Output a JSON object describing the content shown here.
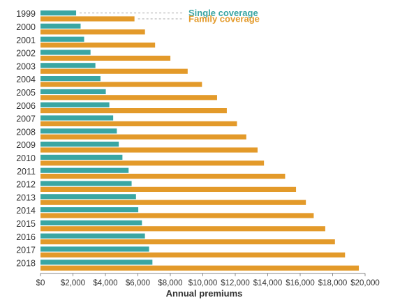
{
  "chart_data": {
    "type": "bar",
    "orientation": "horizontal",
    "categories": [
      "1999",
      "2000",
      "2001",
      "2002",
      "2003",
      "2004",
      "2005",
      "2006",
      "2007",
      "2008",
      "2009",
      "2010",
      "2011",
      "2012",
      "2013",
      "2014",
      "2015",
      "2016",
      "2017",
      "2018"
    ],
    "series": [
      {
        "name": "Single coverage",
        "color": "#3aa6a3",
        "values": [
          2196,
          2471,
          2689,
          3083,
          3383,
          3695,
          4024,
          4242,
          4479,
          4704,
          4824,
          5049,
          5429,
          5615,
          5884,
          6025,
          6251,
          6435,
          6690,
          6896
        ]
      },
      {
        "name": "Family coverage",
        "color": "#e39a2a",
        "values": [
          5791,
          6438,
          7061,
          8003,
          9068,
          9950,
          10880,
          11480,
          12106,
          12680,
          13375,
          13770,
          15073,
          15745,
          16351,
          16834,
          17545,
          18142,
          18764,
          19616
        ]
      }
    ],
    "xlabel": "Annual premiums",
    "ylabel": "",
    "xlim": [
      0,
      20000
    ],
    "xticks": [
      0,
      2000,
      4000,
      6000,
      8000,
      10000,
      12000,
      14000,
      16000,
      18000,
      20000
    ],
    "xtick_labels": [
      "$0",
      "$2,000",
      "$4,000",
      "$6,000",
      "$8,000",
      "$10,000",
      "$12,000",
      "$14,000",
      "$16,000",
      "$18,000",
      "$20,000"
    ],
    "grid": false,
    "legend_placement": "top-right, beside first category"
  }
}
